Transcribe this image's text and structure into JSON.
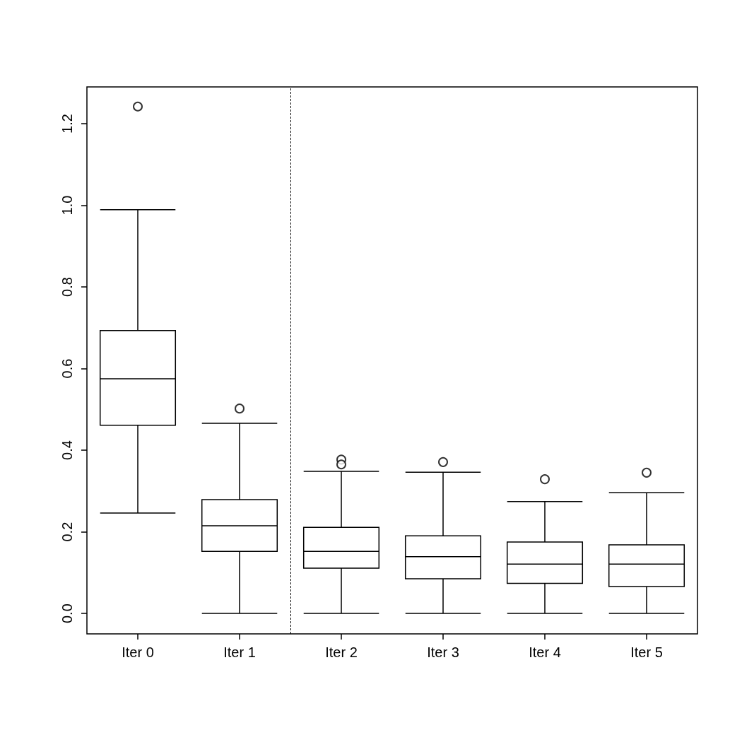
{
  "chart_data": {
    "type": "box",
    "categories": [
      "Iter 0",
      "Iter 1",
      "Iter 2",
      "Iter 3",
      "Iter 4",
      "Iter 5"
    ],
    "boxes": [
      {
        "low": 0.246,
        "q1": 0.461,
        "median": 0.575,
        "q3": 0.693,
        "high": 0.989,
        "outliers": [
          1.242
        ]
      },
      {
        "low": 0,
        "q1": 0.152,
        "median": 0.215,
        "q3": 0.279,
        "high": 0.466,
        "outliers": [
          0.502
        ]
      },
      {
        "low": 0,
        "q1": 0.111,
        "median": 0.152,
        "q3": 0.211,
        "high": 0.348,
        "outliers": [
          0.377,
          0.365
        ]
      },
      {
        "low": 0,
        "q1": 0.085,
        "median": 0.139,
        "q3": 0.19,
        "high": 0.346,
        "outliers": [
          0.371
        ]
      },
      {
        "low": 0,
        "q1": 0.074,
        "median": 0.121,
        "q3": 0.175,
        "high": 0.274,
        "outliers": [
          0.329
        ]
      },
      {
        "low": 0,
        "q1": 0.066,
        "median": 0.121,
        "q3": 0.168,
        "high": 0.296,
        "outliers": [
          0.345
        ]
      }
    ],
    "color": "#000000",
    "ylim": [
      -0.05,
      1.29
    ],
    "yticks": [
      {
        "value": 0,
        "label": "0.0"
      },
      0.2,
      0.4,
      0.6,
      0.8,
      {
        "value": 1,
        "label": "1.0"
      },
      1.2
    ],
    "grid": false
  }
}
